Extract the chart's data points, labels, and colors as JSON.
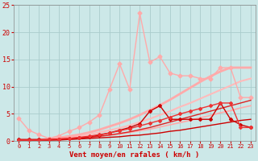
{
  "xlabel": "Vent moyen/en rafales ( km/h )",
  "x_ticks": [
    0,
    1,
    2,
    3,
    4,
    5,
    6,
    7,
    8,
    9,
    10,
    11,
    12,
    13,
    14,
    15,
    16,
    17,
    18,
    19,
    20,
    21,
    22,
    23
  ],
  "xlim": [
    -0.5,
    23.5
  ],
  "ylim": [
    0,
    25
  ],
  "y_ticks": [
    0,
    5,
    10,
    15,
    20,
    25
  ],
  "background_color": "#cce8e8",
  "grid_color": "#aacccc",
  "series": [
    {
      "name": "linear_light1",
      "x": [
        0,
        1,
        2,
        3,
        4,
        5,
        6,
        7,
        8,
        9,
        10,
        11,
        12,
        13,
        14,
        15,
        16,
        17,
        18,
        19,
        20,
        21,
        22,
        23
      ],
      "y": [
        0.0,
        0.0,
        0.1,
        0.2,
        0.3,
        0.4,
        0.5,
        0.7,
        0.9,
        1.1,
        1.3,
        1.6,
        1.9,
        2.2,
        2.6,
        3.0,
        3.4,
        3.8,
        4.3,
        4.7,
        5.2,
        5.6,
        6.1,
        6.5
      ],
      "color": "#ffaaaa",
      "linewidth": 1.2,
      "marker": null,
      "linestyle": "-"
    },
    {
      "name": "linear_light2",
      "x": [
        0,
        1,
        2,
        3,
        4,
        5,
        6,
        7,
        8,
        9,
        10,
        11,
        12,
        13,
        14,
        15,
        16,
        17,
        18,
        19,
        20,
        21,
        22,
        23
      ],
      "y": [
        0.0,
        0.0,
        0.2,
        0.3,
        0.5,
        0.7,
        0.9,
        1.2,
        1.6,
        2.0,
        2.4,
        2.9,
        3.5,
        4.1,
        4.8,
        5.5,
        6.3,
        7.0,
        7.8,
        8.6,
        9.4,
        10.2,
        11.0,
        11.5
      ],
      "color": "#ffbbbb",
      "linewidth": 1.5,
      "marker": null,
      "linestyle": "-"
    },
    {
      "name": "linear_salmon1",
      "x": [
        0,
        1,
        2,
        3,
        4,
        5,
        6,
        7,
        8,
        9,
        10,
        11,
        12,
        13,
        14,
        15,
        16,
        17,
        18,
        19,
        20,
        21,
        22,
        23
      ],
      "y": [
        0.0,
        0.1,
        0.2,
        0.4,
        0.6,
        0.9,
        1.2,
        1.6,
        2.1,
        2.7,
        3.3,
        4.0,
        4.8,
        5.7,
        6.6,
        7.6,
        8.7,
        9.8,
        10.9,
        11.9,
        12.8,
        13.5,
        13.5,
        13.5
      ],
      "color": "#ffaaaa",
      "linewidth": 2.0,
      "marker": null,
      "linestyle": "-"
    },
    {
      "name": "spiky_salmon",
      "x": [
        0,
        1,
        2,
        3,
        4,
        5,
        6,
        7,
        8,
        9,
        10,
        11,
        12,
        13,
        14,
        15,
        16,
        17,
        18,
        19,
        20,
        21,
        22,
        23
      ],
      "y": [
        4.2,
        2.0,
        1.2,
        0.5,
        1.0,
        1.8,
        2.5,
        3.5,
        4.8,
        9.5,
        14.2,
        9.5,
        23.5,
        14.5,
        15.5,
        12.5,
        12.0,
        12.0,
        11.5,
        11.5,
        13.5,
        13.5,
        8.0,
        8.0
      ],
      "color": "#ffaaaa",
      "linewidth": 1.0,
      "marker": "D",
      "markersize": 2.5,
      "linestyle": "-"
    },
    {
      "name": "red_line_smooth",
      "x": [
        0,
        1,
        2,
        3,
        4,
        5,
        6,
        7,
        8,
        9,
        10,
        11,
        12,
        13,
        14,
        15,
        16,
        17,
        18,
        19,
        20,
        21,
        22,
        23
      ],
      "y": [
        0.2,
        0.2,
        0.2,
        0.2,
        0.3,
        0.4,
        0.5,
        0.7,
        0.9,
        1.1,
        1.4,
        1.7,
        2.1,
        2.5,
        3.0,
        3.5,
        4.0,
        4.5,
        5.0,
        5.5,
        6.0,
        6.5,
        7.0,
        7.5
      ],
      "color": "#dd2222",
      "linewidth": 1.0,
      "marker": null,
      "linestyle": "-"
    },
    {
      "name": "red_line_flat",
      "x": [
        0,
        1,
        2,
        3,
        4,
        5,
        6,
        7,
        8,
        9,
        10,
        11,
        12,
        13,
        14,
        15,
        16,
        17,
        18,
        19,
        20,
        21,
        22,
        23
      ],
      "y": [
        0.2,
        0.2,
        0.2,
        0.2,
        0.2,
        0.3,
        0.4,
        0.5,
        0.6,
        0.7,
        0.8,
        1.0,
        1.1,
        1.3,
        1.5,
        1.8,
        2.0,
        2.3,
        2.6,
        2.9,
        3.2,
        3.5,
        3.8,
        4.0
      ],
      "color": "#cc0000",
      "linewidth": 1.0,
      "marker": null,
      "linestyle": "-"
    },
    {
      "name": "red_markers_spiky",
      "x": [
        0,
        1,
        2,
        3,
        4,
        5,
        6,
        7,
        8,
        9,
        10,
        11,
        12,
        13,
        14,
        15,
        16,
        17,
        18,
        19,
        20,
        21,
        22,
        23
      ],
      "y": [
        0.3,
        0.3,
        0.3,
        0.3,
        0.4,
        0.5,
        0.6,
        0.8,
        1.1,
        1.5,
        2.0,
        2.5,
        3.2,
        5.5,
        6.5,
        4.0,
        4.0,
        4.0,
        4.0,
        4.0,
        7.0,
        4.0,
        3.0,
        2.5
      ],
      "color": "#cc0000",
      "linewidth": 1.0,
      "marker": "D",
      "markersize": 2.0,
      "linestyle": "-"
    },
    {
      "name": "red_markers_medium",
      "x": [
        0,
        1,
        2,
        3,
        4,
        5,
        6,
        7,
        8,
        9,
        10,
        11,
        12,
        13,
        14,
        15,
        16,
        17,
        18,
        19,
        20,
        21,
        22,
        23
      ],
      "y": [
        0.2,
        0.2,
        0.2,
        0.3,
        0.4,
        0.5,
        0.7,
        0.9,
        1.2,
        1.5,
        1.9,
        2.3,
        2.8,
        3.3,
        3.8,
        4.4,
        5.0,
        5.5,
        6.0,
        6.5,
        7.0,
        7.0,
        2.5,
        2.5
      ],
      "color": "#ee3333",
      "linewidth": 1.0,
      "marker": "D",
      "markersize": 2.0,
      "linestyle": "-"
    }
  ]
}
